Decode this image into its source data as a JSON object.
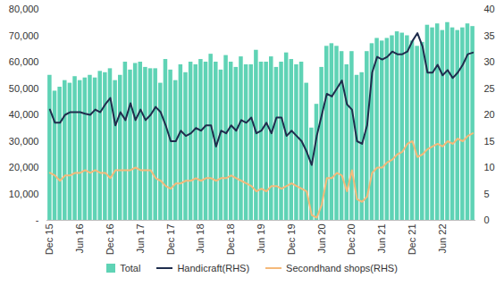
{
  "chart_data": {
    "type": "bar",
    "categories": [
      "Dec 15",
      null,
      null,
      null,
      null,
      null,
      "Jun 16",
      null,
      null,
      null,
      null,
      null,
      "Dec 16",
      null,
      null,
      null,
      null,
      null,
      "Jun 17",
      null,
      null,
      null,
      null,
      null,
      "Dec 17",
      null,
      null,
      null,
      null,
      null,
      "Jun 18",
      null,
      null,
      null,
      null,
      null,
      "Dec 18",
      null,
      null,
      null,
      null,
      null,
      "Jun 19",
      null,
      null,
      null,
      null,
      null,
      "Dec 19",
      null,
      null,
      null,
      null,
      null,
      "Jun 20",
      null,
      null,
      null,
      null,
      null,
      "Dec 20",
      null,
      null,
      null,
      null,
      null,
      "Jun 21",
      null,
      null,
      null,
      null,
      null,
      "Dec 21",
      null,
      null,
      null,
      null,
      null,
      "Jun 22",
      null,
      null,
      null,
      null,
      null,
      null
    ],
    "series": [
      {
        "name": "Total",
        "type": "bar",
        "color": "#5fd3b5",
        "values": [
          55000,
          49000,
          50500,
          53000,
          52000,
          54500,
          53000,
          54000,
          55000,
          54000,
          56500,
          56000,
          57500,
          53000,
          55000,
          60000,
          57000,
          59500,
          60000,
          58000,
          57500,
          57500,
          52000,
          61000,
          57000,
          53000,
          59000,
          56000,
          60000,
          59000,
          61000,
          60000,
          63000,
          60000,
          57000,
          62500,
          60000,
          58000,
          62000,
          59000,
          59000,
          64500,
          60000,
          60000,
          62000,
          58000,
          60000,
          63500,
          61000,
          59000,
          60000,
          52000,
          35000,
          44000,
          58000,
          66000,
          67000,
          66000,
          64000,
          59000,
          64000,
          55000,
          56000,
          64000,
          67000,
          69000,
          68000,
          69000,
          70000,
          71500,
          71000,
          70000,
          68000,
          66000,
          67500,
          74000,
          73000,
          74500,
          72000,
          75000,
          73000,
          72000,
          73000,
          74500,
          73500
        ]
      },
      {
        "name": "Handicraft(RHS)",
        "type": "line",
        "axis": "y2",
        "color": "#1f2d4d",
        "values": [
          21,
          18.5,
          18.5,
          20,
          20.5,
          20.5,
          20.5,
          20.2,
          20,
          21,
          20.5,
          22,
          23.2,
          18,
          20.5,
          19,
          22.2,
          19,
          21,
          19,
          20,
          21.5,
          20.5,
          18,
          15,
          15,
          17,
          16,
          16.5,
          17.5,
          17,
          18,
          18,
          14,
          17,
          16.5,
          18,
          17,
          19,
          18.5,
          19.5,
          16.5,
          17,
          18.5,
          16.5,
          19.5,
          19.5,
          16,
          17,
          16,
          15,
          13,
          10.5,
          16,
          20,
          24,
          23.5,
          25,
          26.5,
          22,
          21,
          15,
          14.5,
          18,
          28,
          31,
          30.5,
          31,
          32,
          31.5,
          31.5,
          32,
          34,
          35.5,
          33,
          28,
          28,
          29.5,
          27.5,
          28.5,
          27,
          28,
          29.5,
          31.5,
          31.8
        ]
      },
      {
        "name": "Secondhand shops(RHS)",
        "type": "line",
        "axis": "y2",
        "color": "#f5b97a",
        "values": [
          9,
          8.5,
          7.5,
          8.5,
          8.5,
          9,
          9,
          9.5,
          9,
          9.5,
          9,
          9,
          8,
          9.5,
          9.5,
          9.5,
          9.5,
          10,
          9.5,
          9.5,
          9.5,
          8,
          7.5,
          6.5,
          6,
          7,
          7,
          7.5,
          7.5,
          8,
          7.5,
          8,
          8,
          7.5,
          8,
          8,
          8.5,
          8,
          7.5,
          7,
          6.5,
          5.5,
          6,
          5.5,
          6.5,
          6.5,
          6,
          6.5,
          7,
          6.5,
          6,
          5.5,
          1,
          0.5,
          3,
          8,
          8,
          9,
          8.5,
          5.5,
          9.5,
          4,
          3.5,
          4.5,
          9,
          10,
          10,
          11,
          11.5,
          12.5,
          13,
          14.5,
          15,
          12,
          12.5,
          13.5,
          14,
          14.5,
          14,
          15,
          14.5,
          15.5,
          15,
          16,
          16.5
        ]
      }
    ],
    "ylim": [
      0,
      80000
    ],
    "yticks": [
      {
        "value": 0,
        "label": "-"
      },
      {
        "value": 10000,
        "label": "10,000"
      },
      {
        "value": 20000,
        "label": "20,000"
      },
      {
        "value": 30000,
        "label": "30,000"
      },
      {
        "value": 40000,
        "label": "40,000"
      },
      {
        "value": 50000,
        "label": "50,000"
      },
      {
        "value": 60000,
        "label": "60,000"
      },
      {
        "value": 70000,
        "label": "70,000"
      },
      {
        "value": 80000,
        "label": "80,000"
      }
    ],
    "y2lim": [
      0,
      40
    ],
    "y2ticks": [
      0,
      5,
      10,
      15,
      20,
      25,
      30,
      35,
      40
    ],
    "legend": "bottom"
  }
}
